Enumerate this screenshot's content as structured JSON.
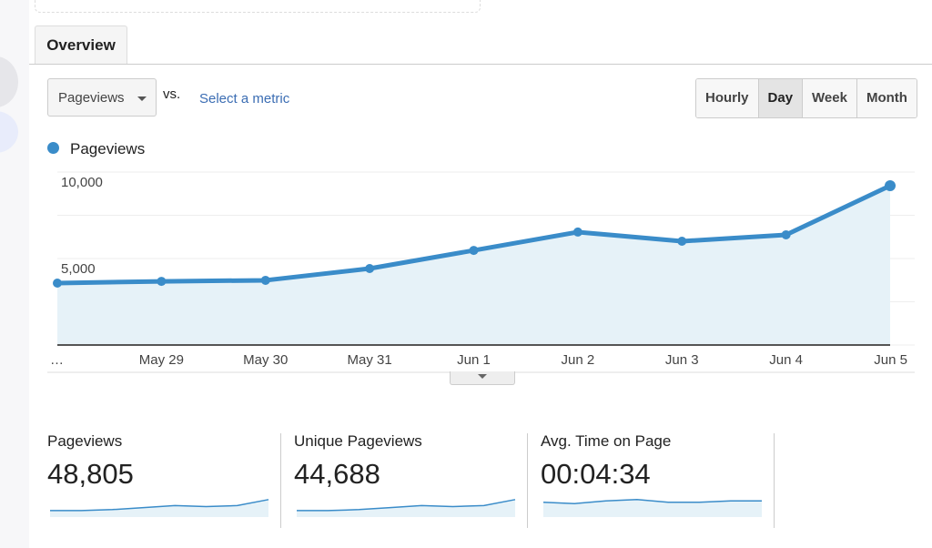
{
  "tabs": [
    {
      "label": "Overview"
    }
  ],
  "metric_select": {
    "value": "Pageviews"
  },
  "vs_label": "vs.",
  "select_metric_link": "Select a metric",
  "granularity": {
    "options": [
      "Hourly",
      "Day",
      "Week",
      "Month"
    ],
    "selected": "Day"
  },
  "colors": {
    "series": "#3a8cc9",
    "fill": "#e6f2f8"
  },
  "chart_data": {
    "type": "area",
    "legend": [
      "Pageviews"
    ],
    "categories": [
      "…",
      "May 29",
      "May 30",
      "May 31",
      "Jun 1",
      "Jun 2",
      "Jun 3",
      "Jun 4",
      "Jun 5"
    ],
    "series": [
      {
        "name": "Pageviews",
        "values": [
          3580,
          3680,
          3740,
          4420,
          5470,
          6530,
          6000,
          6370,
          9210
        ]
      }
    ],
    "yticks": [
      "5,000",
      "10,000"
    ],
    "ylim": [
      0,
      10000
    ],
    "grid": true
  },
  "scorecards": [
    {
      "label": "Pageviews",
      "value": "48,805",
      "spark": [
        1,
        1,
        2,
        4,
        6,
        5,
        6,
        12
      ]
    },
    {
      "label": "Unique Pageviews",
      "value": "44,688",
      "spark": [
        1,
        1,
        2,
        4,
        6,
        5,
        6,
        12
      ]
    },
    {
      "label": "Avg. Time on Page",
      "value": "00:04:34",
      "spark": [
        7,
        6,
        8,
        9,
        7,
        7,
        8,
        8
      ]
    }
  ]
}
